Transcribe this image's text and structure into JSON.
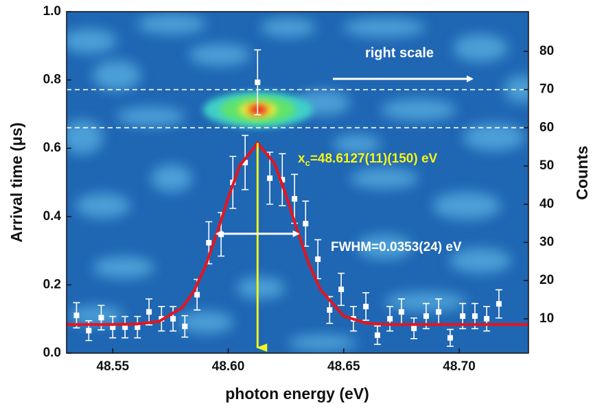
{
  "chart_data": {
    "type": "scatter",
    "xlabel": "photon energy (eV)",
    "ylabel": "Arrival time (μs)",
    "y2label": "Counts",
    "xlim": [
      48.53,
      48.73
    ],
    "xticks": [
      48.55,
      {
        "value": 48.6,
        "label": "48.60"
      },
      48.65,
      {
        "value": 48.7,
        "label": "48.70"
      }
    ],
    "ylim": [
      0,
      1
    ],
    "yticks": [
      {
        "value": 0,
        "label": "0.0"
      },
      0.2,
      0.4,
      0.6,
      0.8,
      {
        "value": 1,
        "label": "1.0"
      }
    ],
    "y2lim": [
      1,
      90.4
    ],
    "y2ticks": [
      10,
      20,
      30,
      40,
      50,
      60,
      70,
      80
    ],
    "dashed_lines_y2": [
      60,
      70
    ],
    "points": {
      "axis": "y2",
      "color": "#ffffff",
      "x": [
        48.5343,
        48.5396,
        48.545,
        48.55,
        48.5553,
        48.5607,
        48.5657,
        48.5711,
        48.5761,
        48.5812,
        48.5865,
        48.5916,
        48.5969,
        48.602,
        48.6073,
        48.6127,
        48.618,
        48.6234,
        48.6287,
        48.6335,
        48.6388,
        48.6439,
        48.6489,
        48.6542,
        48.6596,
        48.6646,
        48.67,
        48.675,
        48.6804,
        48.6857,
        48.6911,
        48.6961,
        48.7015,
        48.7068,
        48.7119,
        48.7172
      ],
      "values": [
        10.9,
        6.9,
        10.3,
        7.8,
        7.8,
        7.8,
        11.8,
        10.0,
        10.0,
        8.0,
        16.3,
        29.9,
        32.1,
        45.7,
        50.9,
        71.9,
        46.8,
        46.4,
        41.4,
        34.9,
        25.6,
        12.3,
        17.7,
        10.0,
        13.2,
        5.7,
        10.0,
        11.8,
        7.5,
        10.7,
        11.8,
        5.0,
        10.7,
        10.7,
        10.0,
        13.9
      ],
      "errors": [
        3.3,
        2.6,
        3.2,
        2.8,
        2.8,
        2.8,
        3.4,
        3.2,
        3.2,
        2.8,
        4.0,
        5.5,
        5.7,
        6.8,
        7.1,
        8.5,
        6.8,
        6.8,
        6.4,
        5.9,
        5.1,
        3.5,
        4.2,
        3.2,
        3.6,
        2.4,
        3.2,
        3.4,
        2.7,
        3.3,
        3.4,
        2.2,
        3.3,
        3.3,
        3.2,
        3.7
      ]
    },
    "fit": {
      "axis": "y2",
      "color": "#e8141c",
      "x": [
        48.53,
        48.55,
        48.56,
        48.57,
        48.58,
        48.585,
        48.59,
        48.595,
        48.6,
        48.605,
        48.6127,
        48.62,
        48.625,
        48.63,
        48.635,
        48.64,
        48.65,
        48.66,
        48.67,
        48.7,
        48.73
      ],
      "values": [
        8.5,
        8.5,
        8.6,
        9.3,
        12.9,
        17.1,
        23.6,
        32.2,
        41.7,
        50.1,
        56.0,
        50.7,
        42.4,
        32.9,
        24.2,
        17.6,
        10.7,
        8.8,
        8.5,
        8.5,
        8.5
      ]
    },
    "center": 48.6127,
    "center_color": "#f5f51a",
    "fwhm": 0.0353,
    "annotations": {
      "right_scale": "right scale",
      "xc_main": "x",
      "xc_sub": "c",
      "xc_rest": "=48.6127(11)(150) eV",
      "fwhm_text": "FWHM=0.0353(24) eV"
    }
  }
}
